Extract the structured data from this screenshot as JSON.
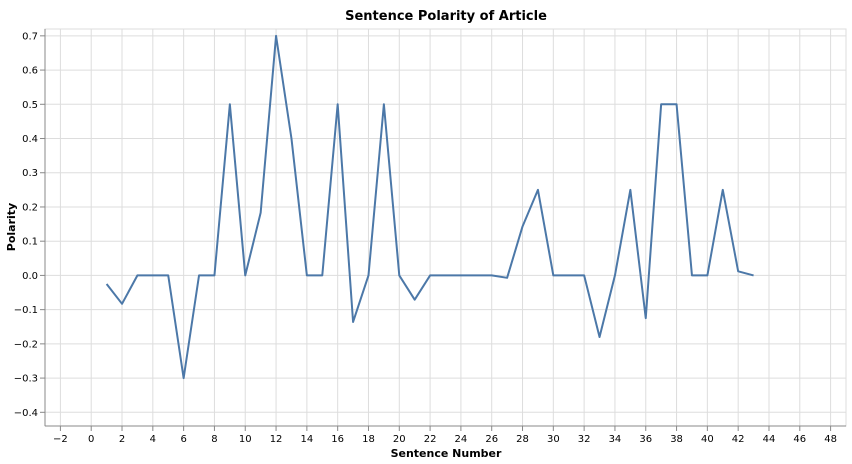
{
  "chart_data": {
    "type": "line",
    "title": "Sentence Polarity of Article",
    "xlabel": "Sentence Number",
    "ylabel": "Polarity",
    "xlim": [
      -3,
      49
    ],
    "ylim": [
      -0.44,
      0.72
    ],
    "xticks": [
      -2,
      0,
      2,
      4,
      6,
      8,
      10,
      12,
      14,
      16,
      18,
      20,
      22,
      24,
      26,
      28,
      30,
      32,
      34,
      36,
      38,
      40,
      42,
      44,
      46,
      48
    ],
    "yticks": [
      -0.4,
      -0.3,
      -0.2,
      -0.1,
      0.0,
      0.1,
      0.2,
      0.3,
      0.4,
      0.5,
      0.6,
      0.7
    ],
    "ytick_labels": [
      "−0.4",
      "−0.3",
      "−0.2",
      "−0.1",
      "0.0",
      "0.1",
      "0.2",
      "0.3",
      "0.4",
      "0.5",
      "0.6",
      "0.7"
    ],
    "xtick_labels": [
      "−2",
      "0",
      "2",
      "4",
      "6",
      "8",
      "10",
      "12",
      "14",
      "16",
      "18",
      "20",
      "22",
      "24",
      "26",
      "28",
      "30",
      "32",
      "34",
      "36",
      "38",
      "40",
      "42",
      "44",
      "46",
      "48"
    ],
    "grid": true,
    "color": "#4c78a8",
    "series": [
      {
        "x": [
          1,
          2,
          3,
          4,
          5,
          6,
          7,
          8,
          9,
          10,
          11,
          12,
          13,
          14,
          15,
          16,
          17,
          18,
          19,
          20,
          21,
          22,
          23,
          24,
          25,
          26,
          27,
          28,
          29,
          30,
          31,
          32,
          33,
          34,
          35,
          36,
          37,
          38,
          39,
          40,
          41,
          42,
          43
        ],
        "y": [
          -0.025,
          -0.083,
          0.0,
          0.0,
          0.0,
          -0.3,
          0.0,
          0.0,
          0.5,
          0.0,
          0.183,
          0.7,
          0.4,
          0.0,
          0.0,
          0.5,
          -0.136,
          0.0,
          0.5,
          0.0,
          -0.071,
          0.0,
          0.0,
          0.0,
          0.0,
          0.0,
          -0.007,
          0.143,
          0.25,
          0.0,
          0.0,
          0.0,
          -0.18,
          0.0,
          0.25,
          -0.125,
          0.5,
          0.5,
          0.0,
          0.0,
          0.25,
          0.012,
          0.0
        ]
      }
    ]
  }
}
